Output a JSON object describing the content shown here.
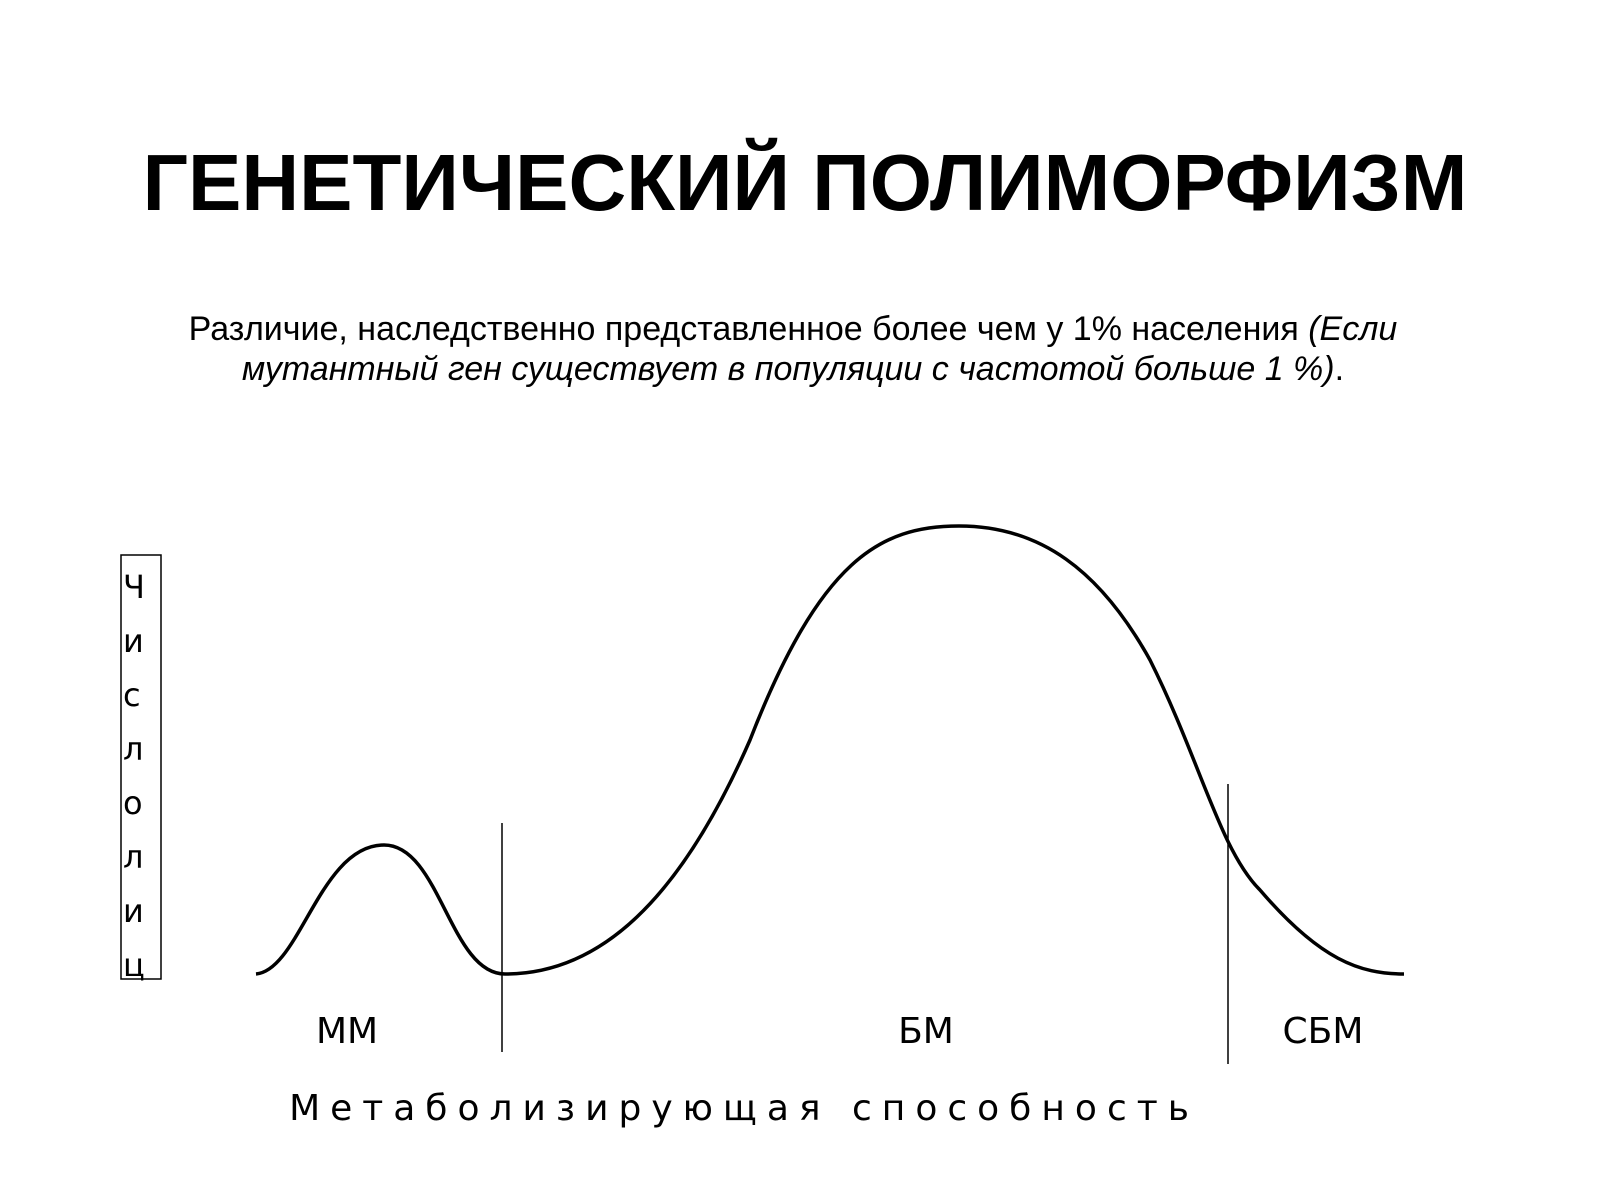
{
  "header": {
    "title": "ГЕНЕТИЧЕСКИЙ ПОЛИМОРФИЗМ"
  },
  "subtitle": {
    "line1_plain": "Различие, наследственно представленное более чем у 1% населения ",
    "line1_italic": "(Если",
    "line2_italic": "мутантный ген существует в популяции с частотой больше 1 %)",
    "line2_end": "."
  },
  "diagram": {
    "y_axis_letters": [
      "Ч",
      "и",
      "с",
      "л",
      "о",
      "л",
      "и",
      "ц"
    ],
    "regions": [
      "ММ",
      "БМ",
      "СБМ"
    ],
    "x_axis_label": "Метаболизирующая способность"
  }
}
